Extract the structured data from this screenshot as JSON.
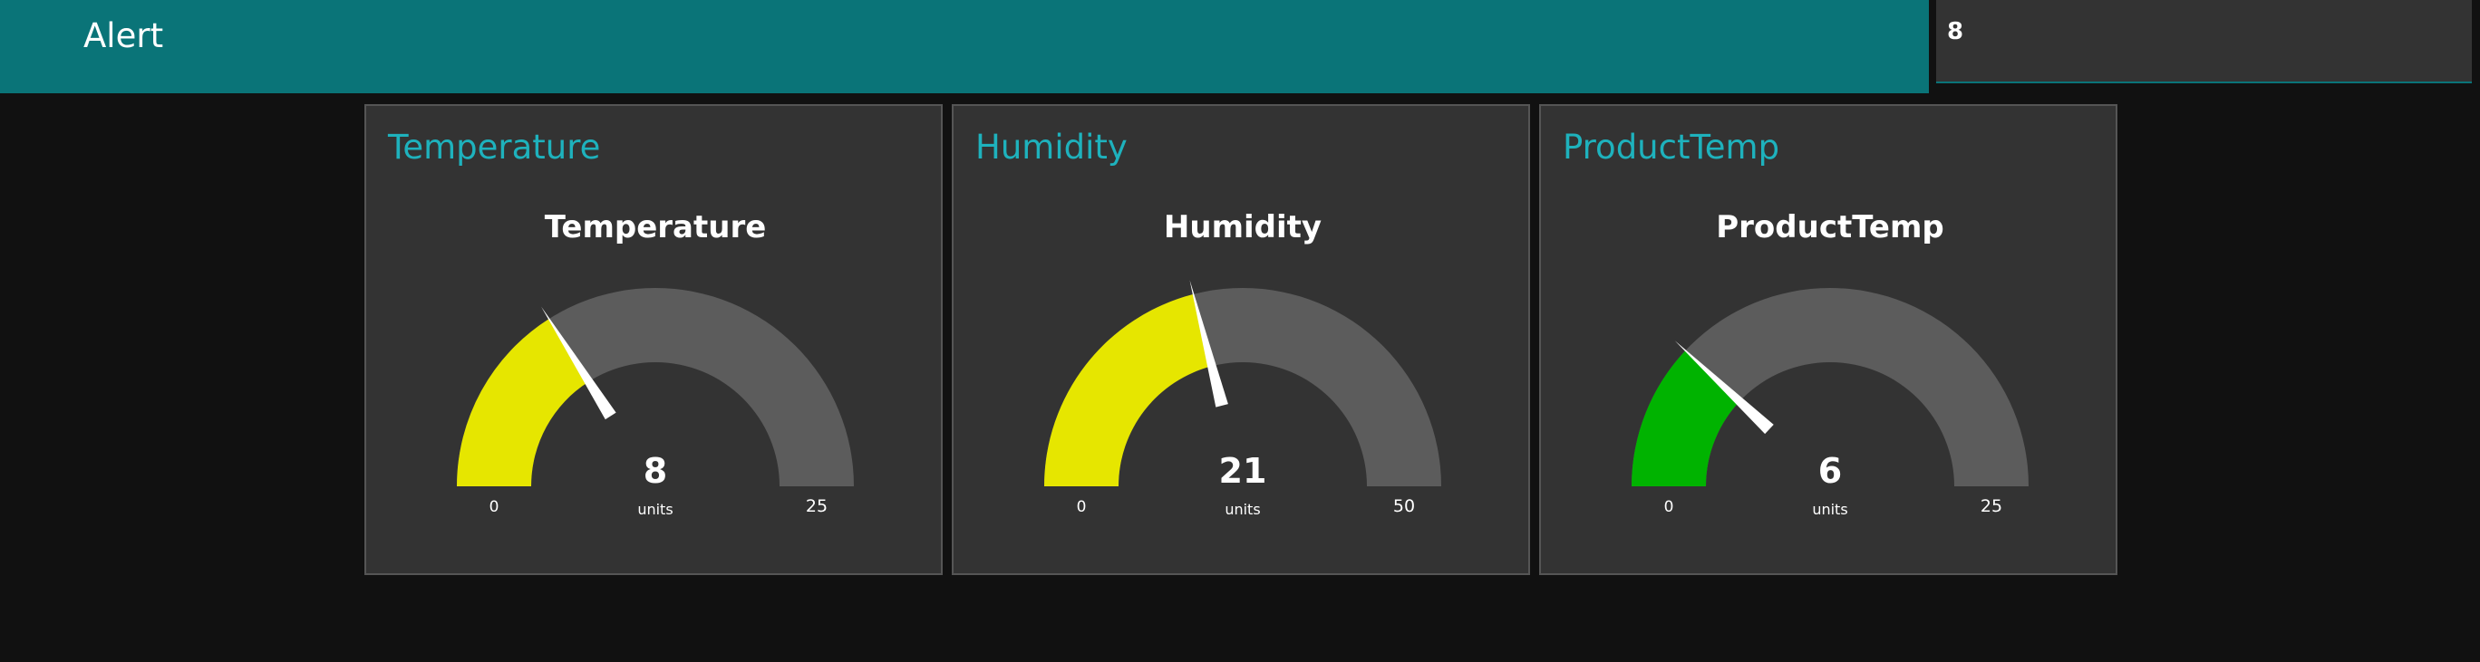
{
  "header": {
    "title": "Alert",
    "alert_value": "8",
    "background_color": "#0a7478"
  },
  "gauges": [
    {
      "group_title": "Temperature",
      "label": "Temperature",
      "value": 8,
      "value_text": "8",
      "units": "units",
      "min": 0,
      "max": 25,
      "min_label": "0",
      "max_label": "25",
      "color": "#e6e600"
    },
    {
      "group_title": "Humidity",
      "label": "Humidity",
      "value": 21,
      "value_text": "21",
      "units": "units",
      "min": 0,
      "max": 50,
      "min_label": "0",
      "max_label": "50",
      "color": "#e6e600"
    },
    {
      "group_title": "ProductTemp",
      "label": "ProductTemp",
      "value": 6,
      "value_text": "6",
      "units": "units",
      "min": 0,
      "max": 25,
      "min_label": "0",
      "max_label": "25",
      "color": "#00b300"
    }
  ],
  "colors": {
    "gauge_background": "#5c5c5c",
    "title_accent": "#1eb2bd",
    "card_background": "#333333",
    "page_background": "#111111"
  }
}
